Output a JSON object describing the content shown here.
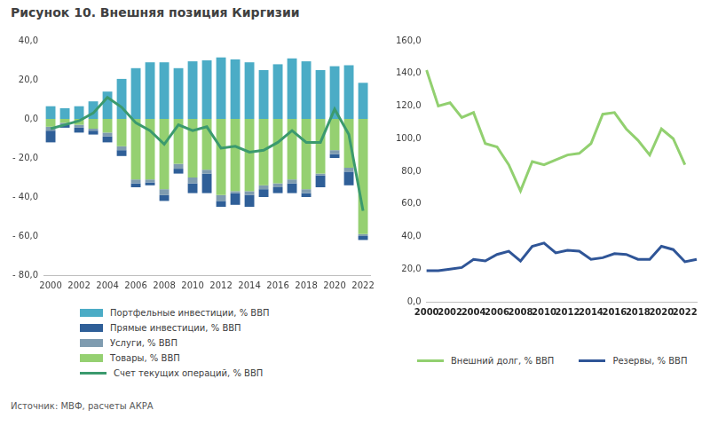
{
  "title": "Рисунок 10. Внешняя позиция Киргизии",
  "source": "Источник: МВФ, расчеты АКРА",
  "chart_data": [
    {
      "type": "bar",
      "stacked": true,
      "grid": false,
      "legend": "bottom",
      "categories": [
        "2000",
        null,
        "2002",
        null,
        "2004",
        null,
        "2006",
        null,
        "2008",
        null,
        "2010",
        null,
        "2012",
        null,
        "2014",
        null,
        "2016",
        null,
        "2018",
        null,
        "2020",
        null,
        "2022"
      ],
      "ylim": [
        -80,
        40
      ],
      "yticks": [
        {
          "value": -80,
          "label": "- 80,0"
        },
        {
          "value": -60,
          "label": "- 60,0"
        },
        {
          "value": -40,
          "label": "- 40,0"
        },
        {
          "value": -20,
          "label": "- 20,0"
        },
        {
          "value": 0,
          "label": "0,0"
        },
        {
          "value": 20,
          "label": "20,0"
        },
        {
          "value": 40,
          "label": "40,0"
        }
      ],
      "series": [
        {
          "name": "Портфельные инвестиции, % ВВП",
          "type": "bar",
          "color": "#4bacc6",
          "values": [
            6.5,
            5.5,
            6.5,
            9,
            14,
            20.5,
            26,
            29,
            29,
            26,
            29.5,
            30,
            31.5,
            30.5,
            29,
            25,
            28,
            31,
            29.5,
            25,
            27,
            27.5,
            18.5
          ]
        },
        {
          "name": "Прямые инвестиции, % ВВП",
          "type": "bar",
          "color": "#2f5f98",
          "values": [
            -6,
            -1.5,
            -2.5,
            -2,
            -3,
            -3,
            -2,
            -1.5,
            -3,
            -2.5,
            -5,
            -10,
            -3,
            -6,
            -6,
            -4,
            -3,
            -5,
            -2,
            -6,
            -2,
            -7,
            -2
          ]
        },
        {
          "name": "Услуги, % ВВП",
          "type": "bar",
          "color": "#7f9cb0",
          "values": [
            -2,
            -1,
            -1.5,
            -1,
            -2,
            -2,
            -2,
            -1.5,
            -3,
            -2.5,
            -3,
            -2,
            -3,
            -1,
            -2,
            -2,
            -2,
            -2,
            -2,
            -1,
            -2,
            -2,
            -1
          ]
        },
        {
          "name": "Товары, % ВВП",
          "type": "bar",
          "color": "#95d071",
          "values": [
            -4,
            -2,
            -3,
            -5,
            -7,
            -14,
            -31,
            -31,
            -36,
            -23,
            -30,
            -26,
            -39,
            -37,
            -37,
            -34,
            -33,
            -31,
            -36,
            -28,
            -16,
            -25,
            -59
          ]
        },
        {
          "name": "Счет текущих операций, % ВВП",
          "type": "line",
          "color": "#3b9a6e",
          "line_style": "solid",
          "values": [
            -5,
            -3,
            -1,
            3,
            11,
            6,
            -2,
            -6,
            -13,
            -3,
            -6,
            -4,
            -15,
            -14,
            -17,
            -16,
            -12,
            -6,
            -12,
            -12,
            5,
            -8,
            -47
          ]
        }
      ]
    },
    {
      "type": "line",
      "grid": false,
      "legend": "bottom",
      "categories": [
        "2000",
        null,
        "2002",
        null,
        "2004",
        null,
        "2006",
        null,
        "2008",
        null,
        "2010",
        null,
        "2012",
        null,
        "2014",
        null,
        "2016",
        null,
        "2018",
        null,
        "2020",
        null,
        "2022",
        null
      ],
      "ylim": [
        0,
        160
      ],
      "yticks": [
        {
          "value": 0,
          "label": "0,0"
        },
        {
          "value": 20,
          "label": "20,0"
        },
        {
          "value": 40,
          "label": "40,0"
        },
        {
          "value": 60,
          "label": "60,0"
        },
        {
          "value": 80,
          "label": "80,0"
        },
        {
          "value": 100,
          "label": "100,0"
        },
        {
          "value": 120,
          "label": "120,0"
        },
        {
          "value": 140,
          "label": "140,0"
        },
        {
          "value": 160,
          "label": "160,0"
        }
      ],
      "series": [
        {
          "name": "Внешний долг, % ВВП",
          "color": "#92d070",
          "line_style": "solid",
          "values": [
            142,
            120,
            122,
            113,
            116,
            97,
            95,
            84,
            68,
            86,
            84,
            87,
            90,
            91,
            97,
            115,
            116,
            106,
            99,
            90,
            106,
            100,
            84,
            null
          ]
        },
        {
          "name": "Резервы, % ВВП",
          "color": "#2f5597",
          "line_style": "solid",
          "values": [
            19,
            19,
            20,
            21,
            26,
            25,
            29,
            31,
            25,
            34,
            36,
            30,
            31.5,
            31,
            26,
            27,
            29.5,
            29,
            26,
            26,
            34,
            32,
            24.5,
            26
          ]
        }
      ]
    }
  ]
}
